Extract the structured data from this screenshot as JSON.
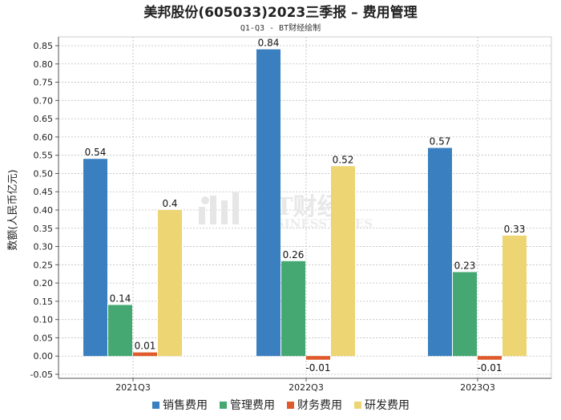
{
  "chart_data": {
    "type": "bar",
    "title": "美邦股份(605033)2023三季报 – 费用管理",
    "subtitle": "Q1-Q3 - BT财经绘制",
    "ylabel": "数额(人民币亿元)",
    "xlabel": "",
    "ylim": [
      -0.05,
      0.85
    ],
    "yticks": [
      "-0.05",
      "0.00",
      "0.05",
      "0.10",
      "0.15",
      "0.20",
      "0.25",
      "0.30",
      "0.35",
      "0.40",
      "0.45",
      "0.50",
      "0.55",
      "0.60",
      "0.65",
      "0.70",
      "0.75",
      "0.80",
      "0.85"
    ],
    "categories": [
      "2021Q3",
      "2022Q3",
      "2023Q3"
    ],
    "series": [
      {
        "name": "销售费用",
        "color": "#3a7fbf",
        "values": [
          0.54,
          0.84,
          0.57
        ],
        "labels": [
          "0.54",
          "0.84",
          "0.57"
        ]
      },
      {
        "name": "管理费用",
        "color": "#45a873",
        "values": [
          0.14,
          0.26,
          0.23
        ],
        "labels": [
          "0.14",
          "0.26",
          "0.23"
        ]
      },
      {
        "name": "财务费用",
        "color": "#e05a2b",
        "values": [
          0.01,
          -0.01,
          -0.01
        ],
        "labels": [
          "0.01",
          "-0.01",
          "-0.01"
        ]
      },
      {
        "name": "研发费用",
        "color": "#ecd572",
        "values": [
          0.4,
          0.52,
          0.33
        ],
        "labels": [
          "0.4",
          "0.52",
          "0.33"
        ]
      }
    ],
    "grid": true,
    "legend_position": "bottom"
  },
  "watermark": {
    "main": "BT财经",
    "sub": "BUSINESSTIMES"
  }
}
